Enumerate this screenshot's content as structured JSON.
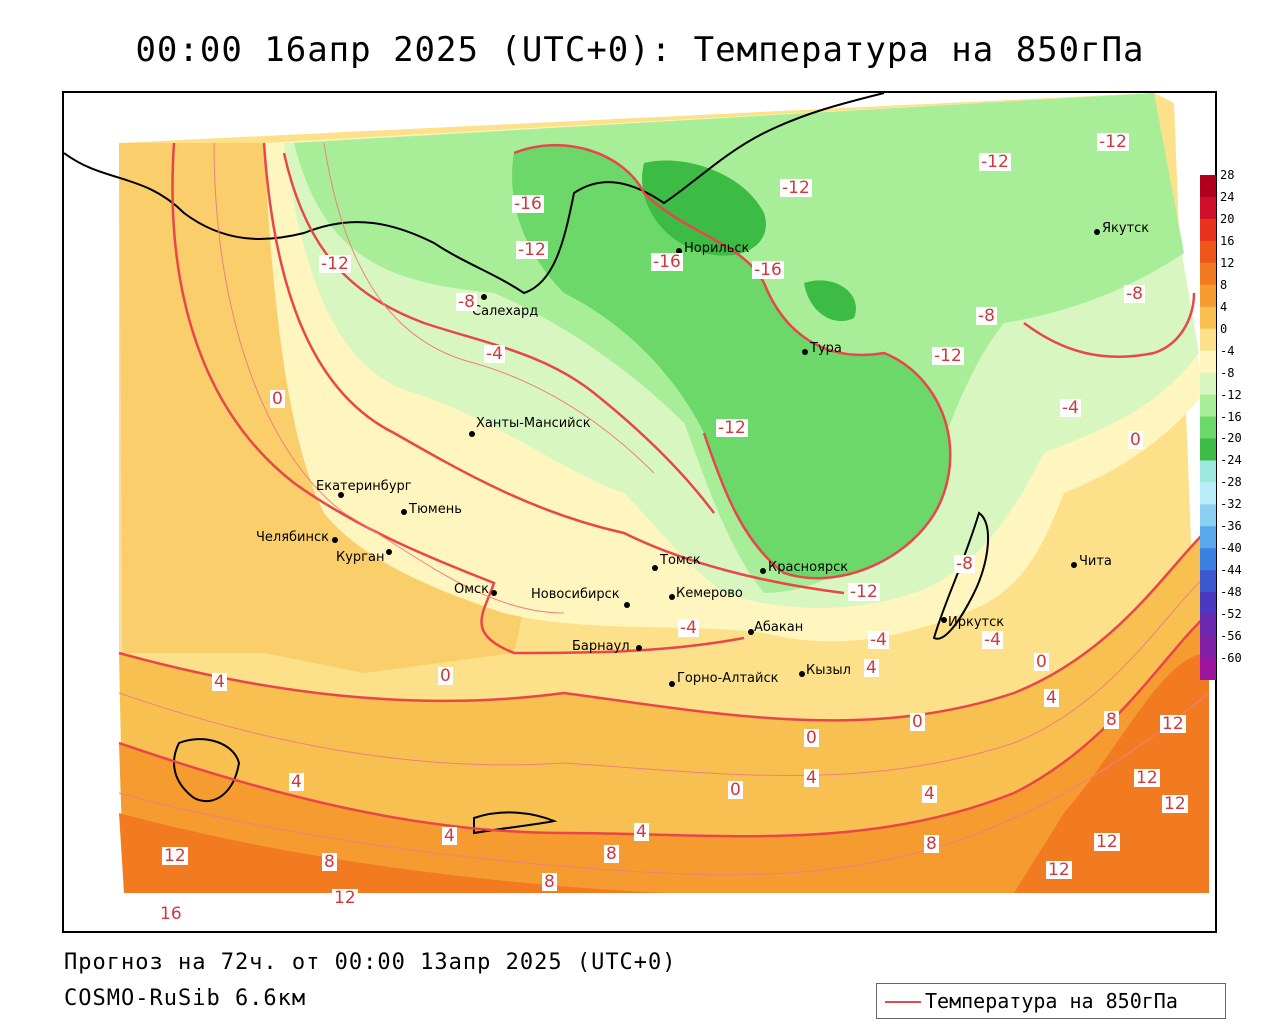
{
  "title": "00:00 16апр 2025 (UTC+0): Температура на 850гПа",
  "forecast_text": "Прогноз на 72ч. от 00:00 13апр 2025 (UTC+0)",
  "model_text": "COSMO-RuSib 6.6км",
  "legend_label": "Температура на 850гПа",
  "colorbar": {
    "labels": [
      "28",
      "24",
      "20",
      "16",
      "12",
      "8",
      "4",
      "0",
      "-4",
      "-8",
      "-12",
      "-16",
      "-20",
      "-24",
      "-28",
      "-32",
      "-36",
      "-40",
      "-44",
      "-48",
      "-52",
      "-56",
      "-60"
    ],
    "colors": [
      "#b0001e",
      "#d0102a",
      "#e8321e",
      "#f0561a",
      "#f27a20",
      "#f59b30",
      "#f8c050",
      "#fde08a",
      "#fff6bf",
      "#d8f7c0",
      "#a8ee98",
      "#6cd86a",
      "#3cbc44",
      "#9ee8e0",
      "#b8ecf8",
      "#8ad0f4",
      "#5aa8ec",
      "#3a80e0",
      "#3a58d0",
      "#4a38c0",
      "#6a28b0",
      "#8020a8",
      "#9c14a0"
    ]
  },
  "cities": [
    {
      "name": "Якутск"
    },
    {
      "name": "Норильск"
    },
    {
      "name": "Салехард"
    },
    {
      "name": "Тура"
    },
    {
      "name": "Ханты-Мансийск"
    },
    {
      "name": "Екатеринбург"
    },
    {
      "name": "Тюмень"
    },
    {
      "name": "Челябинск"
    },
    {
      "name": "Курган"
    },
    {
      "name": "Омск"
    },
    {
      "name": "Томск"
    },
    {
      "name": "Красноярск"
    },
    {
      "name": "Новосибирск"
    },
    {
      "name": "Кемерово"
    },
    {
      "name": "Абакан"
    },
    {
      "name": "Иркутск"
    },
    {
      "name": "Чита"
    },
    {
      "name": "Барнаул"
    },
    {
      "name": "Горно-Алтайск"
    },
    {
      "name": "Кызыл"
    }
  ],
  "isotherm_labels": [
    "-16",
    "-12",
    "-12",
    "-12",
    "-12",
    "-12",
    "-16",
    "-16",
    "-8",
    "-8",
    "-8",
    "-12",
    "-4",
    "-12",
    "-4",
    "-8",
    "-12",
    "-4",
    "-4",
    "-4",
    "0",
    "0",
    "0",
    "4",
    "4",
    "4",
    "4",
    "8",
    "8",
    "8",
    "12",
    "12",
    "12",
    "12",
    "16",
    "8",
    "12",
    "4",
    "0",
    "4",
    "0",
    "4",
    "8",
    "12",
    "12",
    "4",
    "0",
    "0"
  ]
}
